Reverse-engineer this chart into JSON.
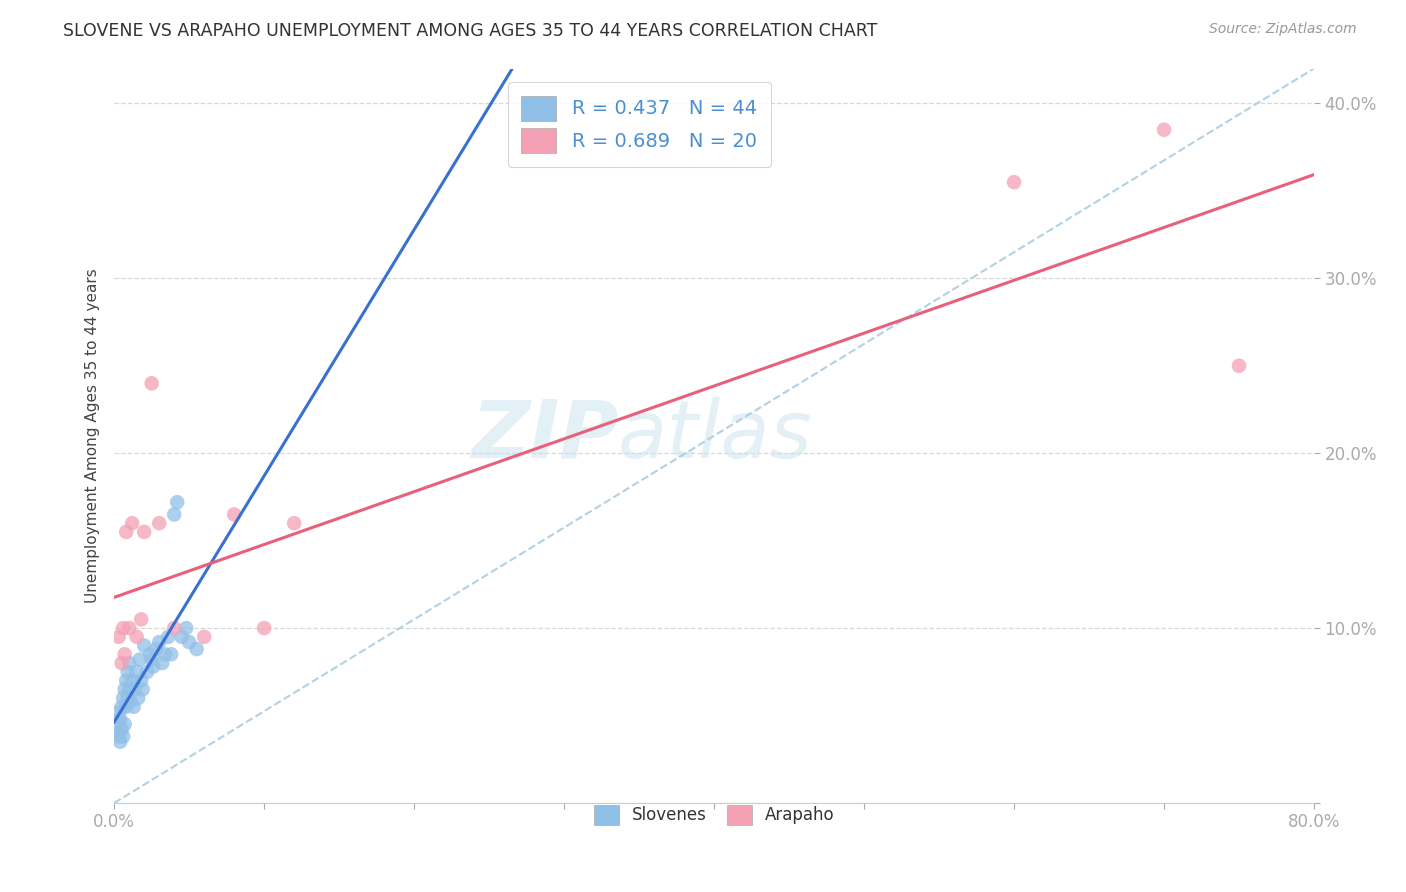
{
  "title": "SLOVENE VS ARAPAHO UNEMPLOYMENT AMONG AGES 35 TO 44 YEARS CORRELATION CHART",
  "source": "Source: ZipAtlas.com",
  "ylabel": "Unemployment Among Ages 35 to 44 years",
  "xlim": [
    0.0,
    0.8
  ],
  "ylim": [
    0.0,
    0.42
  ],
  "xticks": [
    0.0,
    0.1,
    0.2,
    0.3,
    0.4,
    0.5,
    0.6,
    0.7,
    0.8
  ],
  "xticklabels": [
    "0.0%",
    "",
    "",
    "",
    "",
    "",
    "",
    "",
    "80.0%"
  ],
  "yticks": [
    0.0,
    0.1,
    0.2,
    0.3,
    0.4
  ],
  "yticklabels": [
    "",
    "10.0%",
    "20.0%",
    "30.0%",
    "40.0%"
  ],
  "slovene_color": "#90bfe8",
  "arapaho_color": "#f4a0b5",
  "slovene_R": 0.437,
  "slovene_N": 44,
  "arapaho_R": 0.689,
  "arapaho_N": 20,
  "slovene_line_color": "#3a70d0",
  "arapaho_line_color": "#e8607a",
  "dashed_line_color": "#aacce0",
  "watermark_zip": "ZIP",
  "watermark_atlas": "atlas",
  "background_color": "#ffffff",
  "slovene_x": [
    0.001,
    0.002,
    0.003,
    0.003,
    0.004,
    0.004,
    0.005,
    0.005,
    0.006,
    0.006,
    0.007,
    0.007,
    0.008,
    0.008,
    0.009,
    0.009,
    0.01,
    0.01,
    0.011,
    0.012,
    0.013,
    0.014,
    0.015,
    0.016,
    0.017,
    0.018,
    0.019,
    0.02,
    0.022,
    0.024,
    0.025,
    0.026,
    0.028,
    0.03,
    0.032,
    0.034,
    0.036,
    0.038,
    0.04,
    0.042,
    0.045,
    0.048,
    0.05,
    0.055
  ],
  "slovene_y": [
    0.04,
    0.045,
    0.038,
    0.052,
    0.035,
    0.048,
    0.042,
    0.055,
    0.038,
    0.06,
    0.045,
    0.065,
    0.055,
    0.07,
    0.06,
    0.075,
    0.065,
    0.08,
    0.058,
    0.07,
    0.055,
    0.065,
    0.075,
    0.06,
    0.082,
    0.07,
    0.065,
    0.09,
    0.075,
    0.085,
    0.082,
    0.078,
    0.088,
    0.092,
    0.08,
    0.085,
    0.095,
    0.085,
    0.165,
    0.172,
    0.095,
    0.1,
    0.092,
    0.088
  ],
  "arapaho_x": [
    0.003,
    0.005,
    0.006,
    0.007,
    0.008,
    0.01,
    0.012,
    0.015,
    0.018,
    0.02,
    0.025,
    0.03,
    0.04,
    0.06,
    0.08,
    0.1,
    0.12,
    0.6,
    0.7,
    0.75
  ],
  "arapaho_y": [
    0.095,
    0.08,
    0.1,
    0.085,
    0.155,
    0.1,
    0.16,
    0.095,
    0.105,
    0.155,
    0.24,
    0.16,
    0.1,
    0.095,
    0.165,
    0.1,
    0.16,
    0.355,
    0.385,
    0.25
  ]
}
